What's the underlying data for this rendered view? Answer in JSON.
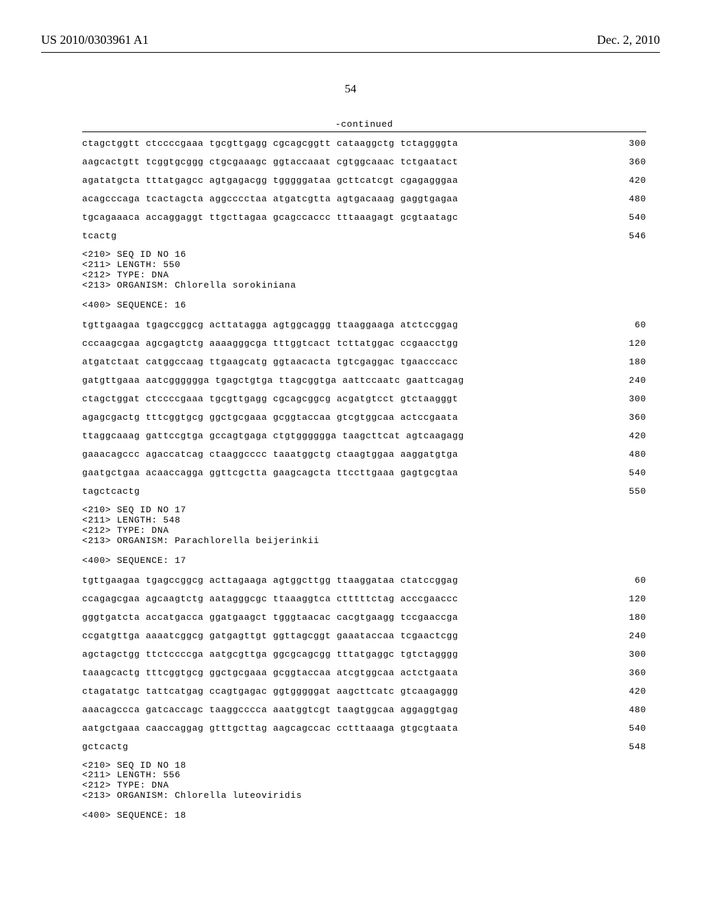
{
  "header": {
    "pub_number": "US 2010/0303961 A1",
    "pub_date": "Dec. 2, 2010"
  },
  "page_number": "54",
  "continued_label": "-continued",
  "blocks": [
    {
      "type": "seq_rows",
      "rows": [
        {
          "text": "ctagctggtt ctccccgaaa tgcgttgagg cgcagcggtt cataaggctg tctaggggta",
          "num": "300"
        },
        {
          "text": "aagcactgtt tcggtgcggg ctgcgaaagc ggtaccaaat cgtggcaaac tctgaatact",
          "num": "360"
        },
        {
          "text": "agatatgcta tttatgagcc agtgagacgg tgggggataa gcttcatcgt cgagagggaa",
          "num": "420"
        },
        {
          "text": "acagcccaga tcactagcta aggcccctaa atgatcgtta agtgacaaag gaggtgagaa",
          "num": "480"
        },
        {
          "text": "tgcagaaaca accaggaggt ttgcttagaa gcagccaccc tttaaagagt gcgtaatagc",
          "num": "540"
        },
        {
          "text": "tcactg",
          "num": "546"
        }
      ]
    },
    {
      "type": "meta",
      "lines": [
        "<210> SEQ ID NO 16",
        "<211> LENGTH: 550",
        "<212> TYPE: DNA",
        "<213> ORGANISM: Chlorella sorokiniana"
      ]
    },
    {
      "type": "seq_header",
      "text": "<400> SEQUENCE: 16"
    },
    {
      "type": "seq_rows",
      "rows": [
        {
          "text": "tgttgaagaa tgagccggcg acttatagga agtggcaggg ttaaggaaga atctccggag",
          "num": "60"
        },
        {
          "text": "cccaagcgaa agcgagtctg aaaagggcga tttggtcact tcttatggac ccgaacctgg",
          "num": "120"
        },
        {
          "text": "atgatctaat catggccaag ttgaagcatg ggtaacacta tgtcgaggac tgaacccacc",
          "num": "180"
        },
        {
          "text": "gatgttgaaa aatcgggggga tgagctgtga ttagcggtga aattccaatc gaattcagag",
          "num": "240"
        },
        {
          "text": "ctagctggat ctccccgaaa tgcgttgagg cgcagcggcg acgatgtcct gtctaagggt",
          "num": "300"
        },
        {
          "text": "agagcgactg tttcggtgcg ggctgcgaaa gcggtaccaa gtcgtggcaa actccgaata",
          "num": "360"
        },
        {
          "text": "ttaggcaaag gattccgtga gccagtgaga ctgtgggggga taagcttcat agtcaagagg",
          "num": "420"
        },
        {
          "text": "gaaacagccc agaccatcag ctaaggcccc taaatggctg ctaagtggaa aaggatgtga",
          "num": "480"
        },
        {
          "text": "gaatgctgaa acaaccagga ggttcgctta gaagcagcta ttccttgaaa gagtgcgtaa",
          "num": "540"
        },
        {
          "text": "tagctcactg",
          "num": "550"
        }
      ]
    },
    {
      "type": "meta",
      "lines": [
        "<210> SEQ ID NO 17",
        "<211> LENGTH: 548",
        "<212> TYPE: DNA",
        "<213> ORGANISM: Parachlorella beijerinkii"
      ]
    },
    {
      "type": "seq_header",
      "text": "<400> SEQUENCE: 17"
    },
    {
      "type": "seq_rows",
      "rows": [
        {
          "text": "tgttgaagaa tgagccggcg acttagaaga agtggcttgg ttaaggataa ctatccggag",
          "num": "60"
        },
        {
          "text": "ccagagcgaa agcaagtctg aatagggcgc ttaaaggtca ctttttctag acccgaaccc",
          "num": "120"
        },
        {
          "text": "gggtgatcta accatgacca ggatgaagct tgggtaacac cacgtgaagg tccgaaccga",
          "num": "180"
        },
        {
          "text": "ccgatgttga aaaatcggcg gatgagttgt ggttagcggt gaaataccaa tcgaactcgg",
          "num": "240"
        },
        {
          "text": "agctagctgg ttctccccga aatgcgttga ggcgcagcgg tttatgaggc tgtctagggg",
          "num": "300"
        },
        {
          "text": "taaagcactg tttcggtgcg ggctgcgaaa gcggtaccaa atcgtggcaa actctgaata",
          "num": "360"
        },
        {
          "text": "ctagatatgc tattcatgag ccagtgagac ggtgggggat aagcttcatc gtcaagaggg",
          "num": "420"
        },
        {
          "text": "aaacagccca gatcaccagc taaggcccca aaatggtcgt taagtggcaa aggaggtgag",
          "num": "480"
        },
        {
          "text": "aatgctgaaa caaccaggag gtttgcttag aagcagccac cctttaaaga gtgcgtaata",
          "num": "540"
        },
        {
          "text": "gctcactg",
          "num": "548"
        }
      ]
    },
    {
      "type": "meta",
      "lines": [
        "<210> SEQ ID NO 18",
        "<211> LENGTH: 556",
        "<212> TYPE: DNA",
        "<213> ORGANISM: Chlorella luteoviridis"
      ]
    },
    {
      "type": "seq_header",
      "text": "<400> SEQUENCE: 18"
    }
  ]
}
